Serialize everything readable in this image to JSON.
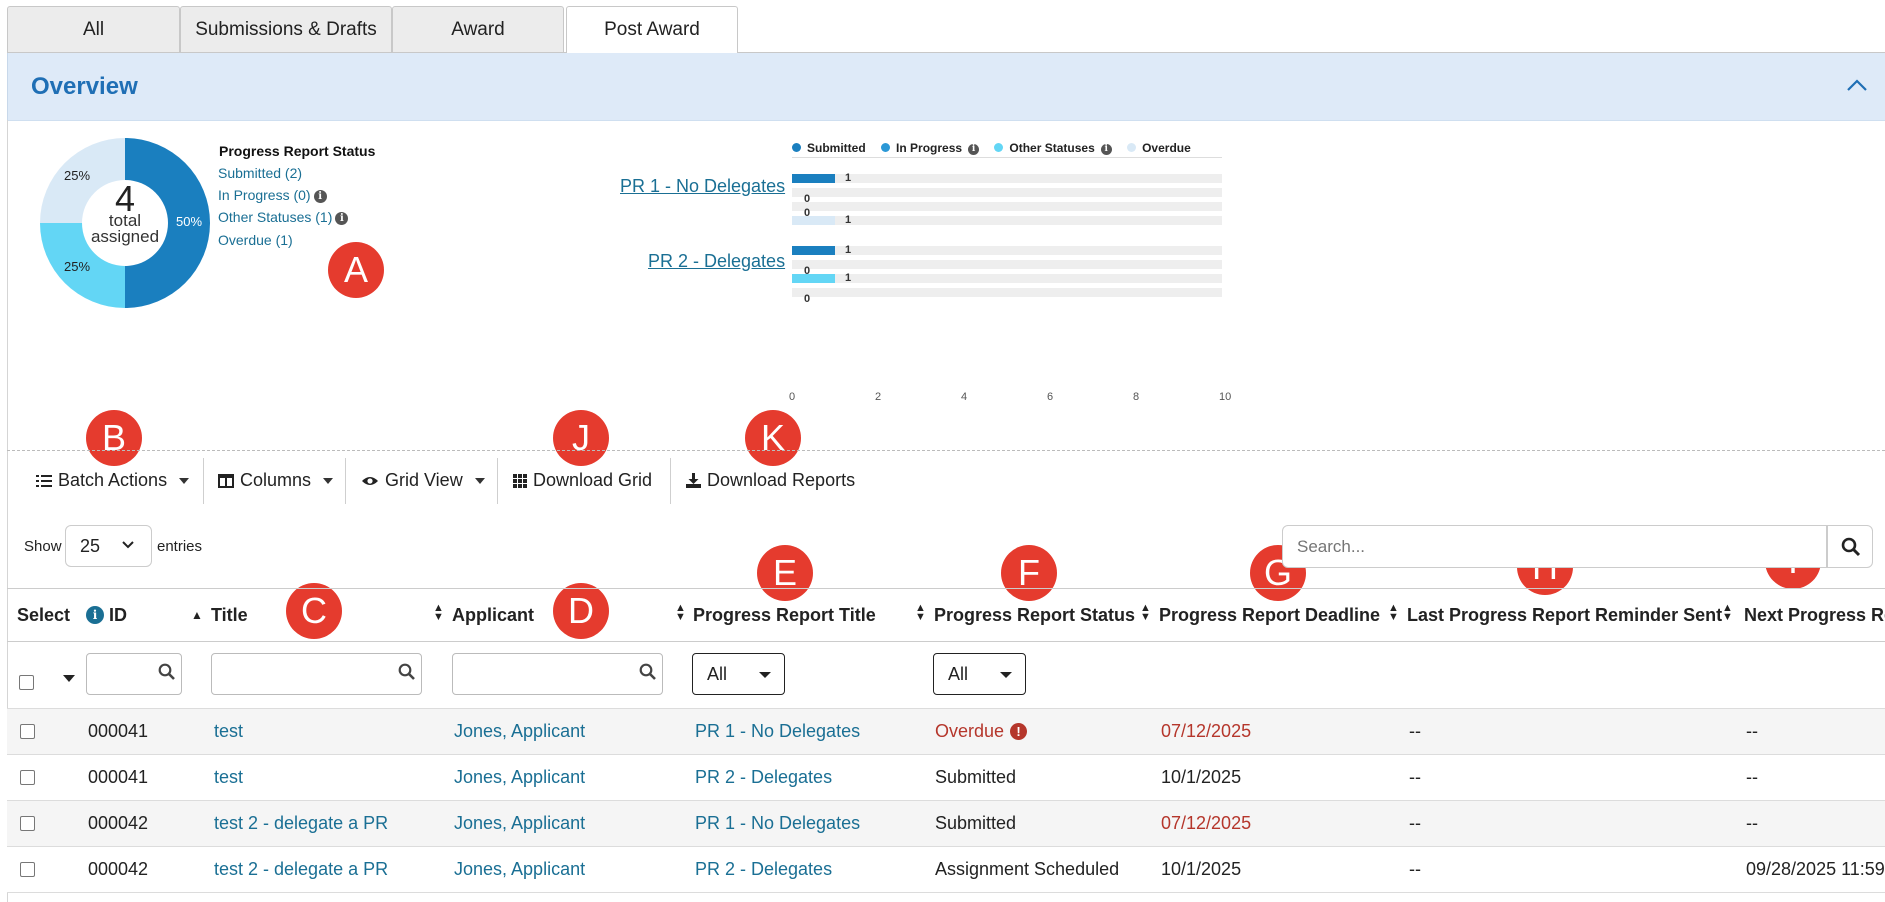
{
  "tabs": [
    {
      "label": "All"
    },
    {
      "label": "Submissions & Drafts"
    },
    {
      "label": "Award"
    },
    {
      "label": "Post Award"
    }
  ],
  "overview": {
    "title": "Overview"
  },
  "donut": {
    "center_number": "4",
    "center_line1": "total",
    "center_line2": "assigned",
    "slices": [
      {
        "label": "50%",
        "percent": 50,
        "color": "#1a7fbf"
      },
      {
        "label": "25%",
        "percent": 25,
        "color": "#63d6f5"
      },
      {
        "label": "25%",
        "percent": 25,
        "color": "#d9e9f6"
      }
    ]
  },
  "status_list": {
    "title": "Progress Report Status",
    "items": [
      "Submitted (2)",
      "In Progress (0)",
      "Other Statuses (1)",
      "Overdue (1)"
    ]
  },
  "markers": [
    "A",
    "B",
    "C",
    "D",
    "E",
    "F",
    "G",
    "H",
    "I",
    "J",
    "K"
  ],
  "chart_data": {
    "type": "bar",
    "orientation": "horizontal",
    "categories": [
      "PR 1 - No Delegates",
      "PR 2 - Delegates"
    ],
    "series": [
      {
        "name": "Submitted",
        "values": [
          1,
          1
        ],
        "color": "#1a7fbf"
      },
      {
        "name": "In Progress",
        "values": [
          0,
          0
        ],
        "color": "#2b98d6"
      },
      {
        "name": "Other Statuses",
        "values": [
          0,
          1
        ],
        "color": "#63d6f5"
      },
      {
        "name": "Overdue",
        "values": [
          1,
          0
        ],
        "color": "#d9e9f6"
      }
    ],
    "xlim": [
      0,
      10
    ],
    "xticks": [
      "0",
      "2",
      "4",
      "6",
      "8",
      "10"
    ],
    "legend_position": "top"
  },
  "toolbar": {
    "batch_actions": "Batch Actions",
    "columns": "Columns",
    "grid_view": "Grid View",
    "download_grid": "Download Grid",
    "download_reports": "Download Reports"
  },
  "table_controls": {
    "show_label": "Show",
    "entries_value": "25",
    "entries_label": "entries",
    "search_placeholder": "Search..."
  },
  "table": {
    "headers": [
      "Select",
      "ID",
      "Title",
      "Applicant",
      "Progress Report Title",
      "Progress Report Status",
      "Progress Report Deadline",
      "Last Progress Report Reminder Sent",
      "Next Progress Re"
    ],
    "filter_all_1": "All",
    "filter_all_2": "All",
    "rows": [
      {
        "id": "000041",
        "title": "test",
        "applicant": "Jones, Applicant",
        "pr_title": "PR 1 - No Delegates",
        "status": "Overdue",
        "deadline": "07/12/2025",
        "last_reminder": "--",
        "next": "--"
      },
      {
        "id": "000041",
        "title": "test",
        "applicant": "Jones, Applicant",
        "pr_title": "PR 2 - Delegates",
        "status": "Submitted",
        "deadline": "10/1/2025",
        "last_reminder": "--",
        "next": "--"
      },
      {
        "id": "000042",
        "title": "test 2 - delegate a PR",
        "applicant": "Jones, Applicant",
        "pr_title": "PR 1 - No Delegates",
        "status": "Submitted",
        "deadline": "07/12/2025",
        "last_reminder": "--",
        "next": "--"
      },
      {
        "id": "000042",
        "title": "test 2 - delegate a PR",
        "applicant": "Jones, Applicant",
        "pr_title": "PR 2 - Delegates",
        "status": "Assignment Scheduled",
        "deadline": "10/1/2025",
        "last_reminder": "--",
        "next": "09/28/2025 11:59"
      }
    ]
  }
}
